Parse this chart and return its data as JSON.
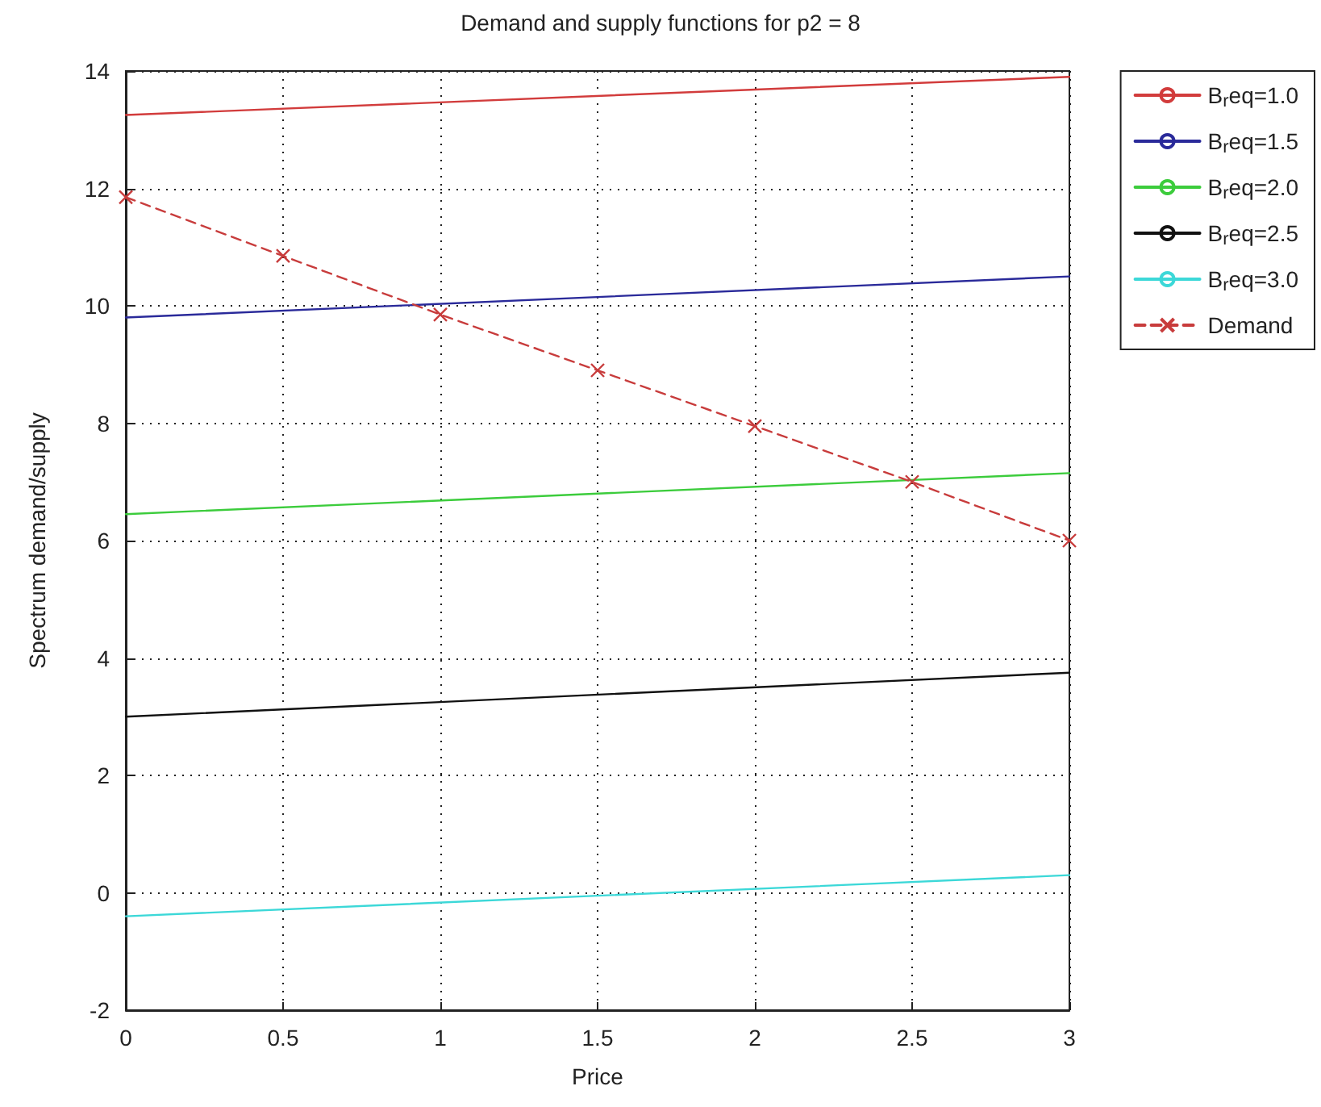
{
  "chart_data": {
    "type": "line",
    "title": "Demand and supply functions for p2 = 8",
    "xlabel": "Price",
    "ylabel": "Spectrum demand/supply",
    "xlim": [
      0,
      3
    ],
    "xticks": [
      0,
      0.5,
      1,
      1.5,
      2,
      2.5,
      3
    ],
    "ylim": [
      -2,
      14
    ],
    "yticks": [
      -2,
      0,
      2,
      4,
      6,
      8,
      10,
      12,
      14
    ],
    "grid": true,
    "legend": "right",
    "marker": "none",
    "line_style": "solid",
    "series": [
      {
        "name": "B$_{r}$eq=1.0",
        "color": "#d23c3c",
        "x": [
          0,
          3
        ],
        "values": [
          13.25,
          13.9
        ]
      },
      {
        "name": "B$_{r}$eq=1.5",
        "color": "#2a2a9a",
        "x": [
          0,
          3
        ],
        "values": [
          9.8,
          10.5
        ]
      },
      {
        "name": "B$_{r}$eq=2.0",
        "color": "#3ccc3c",
        "x": [
          0,
          3
        ],
        "values": [
          6.45,
          7.15
        ]
      },
      {
        "name": "B$_{r}$eq=2.5",
        "color": "#111111",
        "x": [
          0,
          3
        ],
        "values": [
          3.0,
          3.75
        ]
      },
      {
        "name": "B$_{r}$eq=3.0",
        "color": "#3cd8d8",
        "x": [
          0,
          3
        ],
        "values": [
          -0.4,
          0.3
        ]
      },
      {
        "name": "Demand",
        "color": "#c83c3c",
        "x": [
          0,
          0.5,
          1,
          1.5,
          2,
          2.5,
          3
        ],
        "values": [
          11.85,
          10.85,
          9.85,
          8.9,
          7.95,
          7.0,
          6.0
        ],
        "marker": "cross",
        "line_style": "dashed"
      }
    ]
  }
}
